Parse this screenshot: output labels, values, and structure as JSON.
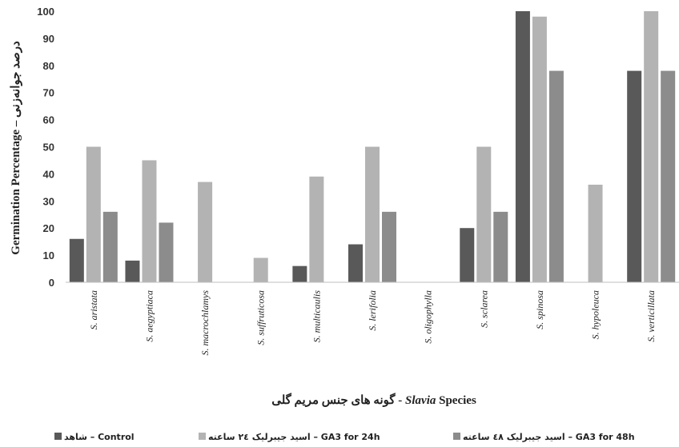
{
  "chart_data": {
    "type": "bar",
    "categories": [
      "S. aristata",
      "S. aegyptiaca",
      "S. macrochlamys",
      "S. suffruticosa",
      "S. multicaulis",
      "S. lerifolia",
      "S. oligophylla",
      "S. sclarea",
      "S. spinosa",
      "S. hypoleuca",
      "S. verticillata"
    ],
    "series": [
      {
        "name": "شاهد – Control",
        "color": "#595959",
        "values": [
          16,
          8,
          0,
          0,
          6,
          14,
          0,
          20,
          100,
          0,
          78
        ]
      },
      {
        "name": "اسید جیبرلیک ۲٤ ساعته – GA3 for 24h",
        "color": "#b3b3b3",
        "values": [
          50,
          45,
          37,
          9,
          39,
          50,
          0,
          50,
          98,
          36,
          100
        ]
      },
      {
        "name": "اسید جیبرلیک ٤۸ ساعته – GA3 for 48h",
        "color": "#8c8c8c",
        "values": [
          26,
          22,
          0,
          0,
          0,
          26,
          0,
          26,
          78,
          0,
          78
        ]
      }
    ],
    "yticks": [
      "0",
      "10",
      "20",
      "30",
      "40",
      "50",
      "60",
      "70",
      "80",
      "90",
      "100"
    ],
    "ylim": [
      0,
      100
    ],
    "ylabel_en": "Germination Percentage",
    "ylabel_sep": " – ",
    "ylabel_fa": "درصد جوانه‌زنی",
    "xlabel_fa": "گونه های جنس مریم گلی",
    "xlabel_sep": " - ",
    "xlabel_italic": "Slavia",
    "xlabel_rest": " Species",
    "legend_position": "bottom",
    "grid": false
  }
}
